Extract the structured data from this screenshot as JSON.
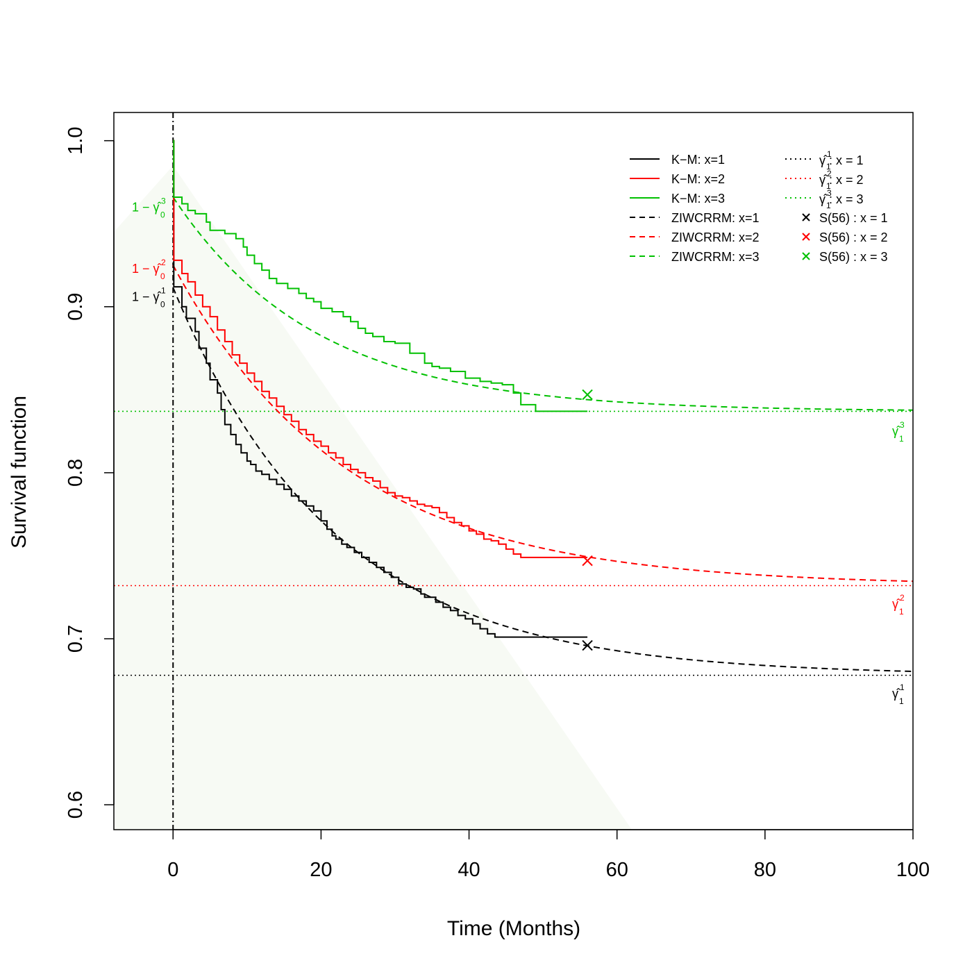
{
  "chart_data": {
    "type": "line",
    "title": "",
    "xlabel": "Time (Months)",
    "ylabel": "Survival function",
    "xlim": [
      -8,
      100
    ],
    "ylim": [
      0.585,
      1.017
    ],
    "xticks": [
      "0",
      "20",
      "40",
      "60",
      "80",
      "100"
    ],
    "xtick_values": [
      0,
      20,
      40,
      60,
      80,
      100
    ],
    "yticks": [
      "0.6",
      "0.7",
      "0.8",
      "0.9",
      "1.0"
    ],
    "ytick_values": [
      0.6,
      0.7,
      0.8,
      0.9,
      1.0
    ],
    "grid": false,
    "legend_position": "top-right",
    "vertical_reference": {
      "x": 0,
      "style": "dotdash",
      "color": "#000000"
    },
    "colors": {
      "x1": "#000000",
      "x2": "#ff0000",
      "x3": "#00c000",
      "background_band": "#f7faf4"
    },
    "km_series": [
      {
        "name": "K–M: x=1",
        "color": "#000000",
        "x": [
          0,
          0.1,
          1.2,
          1.8,
          3,
          3.5,
          4.5,
          5,
          6,
          6.5,
          7,
          7.8,
          8.5,
          9.2,
          10,
          10.5,
          11.2,
          12,
          13,
          14,
          15,
          16,
          17,
          18,
          19,
          20,
          20.8,
          21.5,
          22,
          22.8,
          23.5,
          24.5,
          25.5,
          26.5,
          27.5,
          28.5,
          29.5,
          30.5,
          31.5,
          32.5,
          33.5,
          34,
          35.5,
          36.5,
          37.5,
          38.5,
          39.5,
          40.5,
          41.5,
          42.5,
          43.5,
          45,
          56
        ],
        "y": [
          1.0,
          0.912,
          0.9,
          0.893,
          0.885,
          0.875,
          0.866,
          0.856,
          0.848,
          0.838,
          0.829,
          0.823,
          0.817,
          0.812,
          0.807,
          0.805,
          0.801,
          0.799,
          0.796,
          0.793,
          0.79,
          0.786,
          0.783,
          0.78,
          0.777,
          0.771,
          0.766,
          0.762,
          0.76,
          0.757,
          0.755,
          0.752,
          0.749,
          0.746,
          0.743,
          0.74,
          0.737,
          0.733,
          0.731,
          0.73,
          0.727,
          0.725,
          0.722,
          0.719,
          0.717,
          0.714,
          0.712,
          0.709,
          0.706,
          0.703,
          0.701,
          0.701,
          0.701
        ]
      },
      {
        "name": "K–M: x=2",
        "color": "#ff0000",
        "x": [
          0,
          0.1,
          1.2,
          2,
          3,
          4,
          5,
          6,
          7,
          8,
          9,
          10,
          11,
          12,
          13,
          14,
          15,
          16,
          17,
          18,
          19,
          20,
          21,
          22,
          23,
          24,
          25,
          26,
          27,
          28,
          29,
          30,
          31,
          32,
          33,
          34,
          35,
          36,
          37,
          38,
          39,
          40,
          41,
          42,
          43,
          44,
          45,
          46,
          47,
          56
        ],
        "y": [
          1.0,
          0.928,
          0.92,
          0.915,
          0.907,
          0.9,
          0.894,
          0.886,
          0.879,
          0.871,
          0.866,
          0.86,
          0.855,
          0.849,
          0.845,
          0.84,
          0.835,
          0.831,
          0.826,
          0.823,
          0.819,
          0.816,
          0.812,
          0.809,
          0.805,
          0.802,
          0.8,
          0.797,
          0.795,
          0.791,
          0.788,
          0.786,
          0.785,
          0.783,
          0.781,
          0.78,
          0.779,
          0.776,
          0.773,
          0.77,
          0.768,
          0.765,
          0.763,
          0.76,
          0.759,
          0.757,
          0.754,
          0.751,
          0.749,
          0.749
        ]
      },
      {
        "name": "K–M: x=3",
        "color": "#00c000",
        "x": [
          0,
          0.1,
          1.2,
          2,
          3,
          4.5,
          5,
          7,
          8.5,
          9.5,
          10,
          11,
          12,
          13,
          14,
          15.5,
          17,
          18,
          19,
          20,
          21.5,
          23,
          24,
          25,
          26,
          27,
          28.5,
          30,
          32,
          34,
          35,
          36,
          37.5,
          39.5,
          41.5,
          43,
          44.5,
          46,
          47,
          49,
          56
        ],
        "y": [
          1.0,
          0.966,
          0.962,
          0.958,
          0.956,
          0.951,
          0.946,
          0.944,
          0.941,
          0.936,
          0.931,
          0.926,
          0.922,
          0.917,
          0.914,
          0.911,
          0.908,
          0.905,
          0.903,
          0.899,
          0.897,
          0.894,
          0.891,
          0.887,
          0.884,
          0.882,
          0.879,
          0.878,
          0.872,
          0.866,
          0.864,
          0.863,
          0.861,
          0.857,
          0.855,
          0.854,
          0.853,
          0.848,
          0.841,
          0.837,
          0.837
        ]
      }
    ],
    "model_series": [
      {
        "name": "ZIWCRRM: x=1",
        "color": "#000000",
        "style": "dashed",
        "gamma0_hat": 0.0885,
        "gamma1_hat": 0.678,
        "rate": 0.046,
        "x_start": 0,
        "x_end": 100
      },
      {
        "name": "ZIWCRRM: x=2",
        "color": "#ff0000",
        "style": "dashed",
        "gamma0_hat": 0.075,
        "gamma1_hat": 0.732,
        "rate": 0.043,
        "x_start": 0,
        "x_end": 100
      },
      {
        "name": "ZIWCRRM: x=3",
        "color": "#00c000",
        "style": "dashed",
        "gamma0_hat": 0.034,
        "gamma1_hat": 0.837,
        "rate": 0.052,
        "x_start": 0,
        "x_end": 100
      }
    ],
    "cure_lines": [
      {
        "name": "γ̂₁¹ : x = 1",
        "value": 0.678,
        "color": "#000000",
        "style": "dotted"
      },
      {
        "name": "γ̂₁² : x = 2",
        "value": 0.732,
        "color": "#ff0000",
        "style": "dotted"
      },
      {
        "name": "γ̂₁³ : x = 3",
        "value": 0.837,
        "color": "#00c000",
        "style": "dotted"
      }
    ],
    "s56_points": [
      {
        "name": "S(56) : x = 1",
        "x": 56,
        "y": 0.696,
        "color": "#000000"
      },
      {
        "name": "S(56) : x = 2",
        "x": 56,
        "y": 0.747,
        "color": "#ff0000"
      },
      {
        "name": "S(56) : x = 3",
        "x": 56,
        "y": 0.847,
        "color": "#00c000"
      }
    ],
    "annotations": [
      {
        "prefix": "1 − ",
        "symbol": "γ̂",
        "sup": "1",
        "sub": "0",
        "at_y": 0.906,
        "color": "#000000",
        "side": "left"
      },
      {
        "prefix": "1 − ",
        "symbol": "γ̂",
        "sup": "2",
        "sub": "0",
        "at_y": 0.923,
        "color": "#ff0000",
        "side": "left"
      },
      {
        "prefix": "1 − ",
        "symbol": "γ̂",
        "sup": "3",
        "sub": "0",
        "at_y": 0.96,
        "color": "#00c000",
        "side": "left"
      },
      {
        "prefix": "",
        "symbol": "γ̂",
        "sup": "1",
        "sub": "1",
        "at_y": 0.667,
        "color": "#000000",
        "side": "right"
      },
      {
        "prefix": "",
        "symbol": "γ̂",
        "sup": "2",
        "sub": "1",
        "at_y": 0.721,
        "color": "#ff0000",
        "side": "right"
      },
      {
        "prefix": "",
        "symbol": "γ̂",
        "sup": "3",
        "sub": "1",
        "at_y": 0.825,
        "color": "#00c000",
        "side": "right"
      }
    ],
    "legend": {
      "left_column": [
        {
          "label": "K−M: x=1",
          "color": "#000000",
          "style": "solid"
        },
        {
          "label": "K−M: x=2",
          "color": "#ff0000",
          "style": "solid"
        },
        {
          "label": "K−M: x=3",
          "color": "#00c000",
          "style": "solid"
        },
        {
          "label": "ZIWCRRM: x=1",
          "color": "#000000",
          "style": "dashed"
        },
        {
          "label": "ZIWCRRM: x=2",
          "color": "#ff0000",
          "style": "dashed"
        },
        {
          "label": "ZIWCRRM: x=3",
          "color": "#00c000",
          "style": "dashed"
        }
      ],
      "right_column": [
        {
          "label": "γ̂ : x = 1",
          "sup": "1",
          "sub": "1",
          "color": "#000000",
          "style": "dotted"
        },
        {
          "label": "γ̂ : x = 2",
          "sup": "2",
          "sub": "1",
          "color": "#ff0000",
          "style": "dotted"
        },
        {
          "label": "γ̂ : x = 3",
          "sup": "3",
          "sub": "1",
          "color": "#00c000",
          "style": "dotted"
        },
        {
          "label": "S(56) : x = 1",
          "color": "#000000",
          "style": "cross"
        },
        {
          "label": "S(56) : x = 2",
          "color": "#ff0000",
          "style": "cross"
        },
        {
          "label": "S(56) : x = 3",
          "color": "#00c000",
          "style": "cross"
        }
      ]
    }
  }
}
